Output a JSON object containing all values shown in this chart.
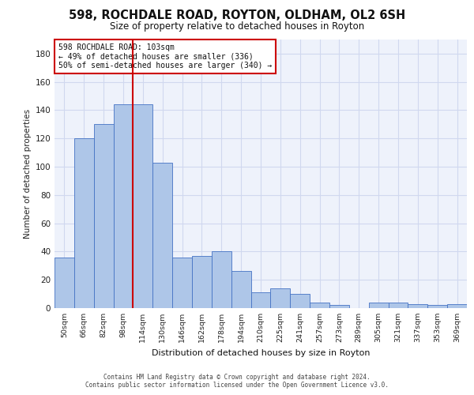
{
  "title_line1": "598, ROCHDALE ROAD, ROYTON, OLDHAM, OL2 6SH",
  "title_line2": "Size of property relative to detached houses in Royton",
  "xlabel": "Distribution of detached houses by size in Royton",
  "ylabel": "Number of detached properties",
  "categories": [
    "50sqm",
    "66sqm",
    "82sqm",
    "98sqm",
    "114sqm",
    "130sqm",
    "146sqm",
    "162sqm",
    "178sqm",
    "194sqm",
    "210sqm",
    "225sqm",
    "241sqm",
    "257sqm",
    "273sqm",
    "289sqm",
    "305sqm",
    "321sqm",
    "337sqm",
    "353sqm",
    "369sqm"
  ],
  "values": [
    36,
    120,
    130,
    144,
    144,
    103,
    36,
    37,
    40,
    26,
    11,
    14,
    10,
    4,
    2,
    0,
    4,
    4,
    3,
    2,
    3
  ],
  "bar_color": "#aec6e8",
  "bar_edge_color": "#4472c4",
  "grid_color": "#d0d8ef",
  "background_color": "#eef2fb",
  "vline_x": 3.5,
  "vline_color": "#cc0000",
  "annotation_text": "598 ROCHDALE ROAD: 103sqm\n← 49% of detached houses are smaller (336)\n50% of semi-detached houses are larger (340) →",
  "annotation_box_color": "#ffffff",
  "annotation_box_edge": "#cc0000",
  "footnote1": "Contains HM Land Registry data © Crown copyright and database right 2024.",
  "footnote2": "Contains public sector information licensed under the Open Government Licence v3.0.",
  "ylim": [
    0,
    190
  ],
  "yticks": [
    0,
    20,
    40,
    60,
    80,
    100,
    120,
    140,
    160,
    180
  ]
}
